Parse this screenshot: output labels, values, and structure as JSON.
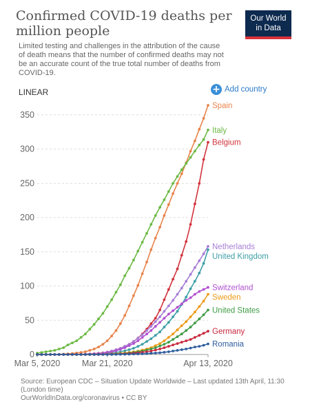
{
  "header": {
    "title": "Confirmed COVID-19 deaths per million people",
    "subtitle": "Limited testing and challenges in the attribution of the cause of death means that the number of confirmed deaths may not be an accurate count of the true total number of deaths from COVID-19.",
    "logo_line1": "Our World",
    "logo_line2": "in Data"
  },
  "controls": {
    "scale_label": "LINEAR",
    "add_country_label": "Add country"
  },
  "footer": {
    "source": "Source: European CDC – Situation Update Worldwide – Last updated 13th April, 11:30 (London time)",
    "credit": "OurWorldInData.org/coronavirus • CC BY"
  },
  "colors": {
    "grid": "#dddddd",
    "axis_text": "#666666"
  },
  "chart_data": {
    "type": "line",
    "title": "Confirmed COVID-19 deaths per million people",
    "y_scale": "linear",
    "yticks": [
      0,
      50,
      100,
      150,
      200,
      250,
      300,
      350
    ],
    "ylim": [
      0,
      365
    ],
    "xticks": [
      "Mar 5, 2020",
      "Mar 21, 2020",
      "Apr 13, 2020"
    ],
    "x_start": "2020-03-05",
    "x_end": "2020-04-13",
    "grid": true,
    "series": [
      {
        "name": "Spain",
        "color": "#e8834a",
        "values": [
          0,
          0,
          0,
          0,
          0.1,
          0.3,
          0.6,
          1,
          1.5,
          2.2,
          3,
          4,
          6,
          8,
          11,
          15,
          20,
          27,
          35,
          45,
          57,
          71,
          86,
          101,
          118,
          135,
          153,
          170,
          186,
          203,
          219,
          235,
          250,
          264,
          280,
          297,
          312,
          329,
          345,
          364
        ]
      },
      {
        "name": "Italy",
        "color": "#6cb944",
        "values": [
          2,
          3,
          4,
          5,
          6,
          8,
          10,
          14,
          17,
          20,
          25,
          30,
          37,
          44,
          52,
          60,
          70,
          80,
          91,
          102,
          115,
          126,
          138,
          151,
          164,
          177,
          190,
          203,
          215,
          226,
          238,
          250,
          260,
          270,
          279,
          288,
          297,
          306,
          314,
          328
        ]
      },
      {
        "name": "Belgium",
        "color": "#d2333c",
        "values": [
          0,
          0,
          0,
          0,
          0,
          0,
          0,
          0,
          0.1,
          0.2,
          0.3,
          0.5,
          0.8,
          1.2,
          1.8,
          2.5,
          3.5,
          5,
          7,
          9,
          12,
          15,
          19,
          24,
          30,
          37,
          45,
          53,
          65,
          80,
          95,
          110,
          125,
          145,
          165,
          190,
          220,
          250,
          285,
          310
        ]
      },
      {
        "name": "Netherlands",
        "color": "#a77ed6",
        "values": [
          0,
          0,
          0,
          0,
          0,
          0,
          0,
          0,
          0,
          0.1,
          0.2,
          0.4,
          0.7,
          1,
          1.5,
          2.3,
          3.5,
          5,
          7,
          9,
          12,
          15,
          19,
          24,
          29,
          35,
          41,
          48,
          55,
          63,
          71,
          79,
          88,
          97,
          107,
          117,
          127,
          137,
          147,
          158
        ]
      },
      {
        "name": "United Kingdom",
        "color": "#3d9ea6",
        "values": [
          0,
          0,
          0,
          0,
          0,
          0,
          0,
          0,
          0,
          0,
          0.1,
          0.2,
          0.3,
          0.4,
          0.6,
          0.9,
          1.3,
          2,
          3,
          4,
          5.5,
          7,
          9,
          12,
          15,
          19,
          23,
          28,
          33,
          40,
          47,
          55,
          63,
          73,
          84,
          96,
          107,
          119,
          133,
          153
        ]
      },
      {
        "name": "Switzerland",
        "color": "#b051cf",
        "values": [
          0,
          0,
          0,
          0,
          0,
          0,
          0,
          0,
          0,
          0,
          0.1,
          0.2,
          0.4,
          0.7,
          1.1,
          1.8,
          2.7,
          3.8,
          5.5,
          7.5,
          10,
          13,
          16,
          20,
          25,
          30,
          35,
          41,
          47,
          53,
          59,
          64,
          69,
          74,
          79,
          83,
          88,
          92,
          95,
          98
        ]
      },
      {
        "name": "Sweden",
        "color": "#ed9a17",
        "values": [
          0,
          0,
          0,
          0,
          0,
          0,
          0,
          0,
          0,
          0,
          0,
          0,
          0,
          0.1,
          0.2,
          0.3,
          0.5,
          0.8,
          1.2,
          1.7,
          2.3,
          3,
          4,
          5,
          6.5,
          8,
          10,
          13,
          16,
          20,
          25,
          30,
          36,
          42,
          48,
          55,
          62,
          70,
          78,
          88
        ]
      },
      {
        "name": "United States",
        "color": "#3f9b46",
        "values": [
          0,
          0,
          0,
          0,
          0,
          0,
          0,
          0,
          0,
          0,
          0,
          0,
          0,
          0,
          0.1,
          0.2,
          0.3,
          0.5,
          0.8,
          1.1,
          1.6,
          2.2,
          3,
          4,
          5,
          6.5,
          8,
          10,
          12.5,
          15,
          18,
          22,
          26,
          30,
          35,
          40,
          46,
          52,
          58,
          65
        ]
      },
      {
        "name": "Germany",
        "color": "#c8283c",
        "values": [
          0,
          0,
          0,
          0,
          0,
          0,
          0,
          0,
          0,
          0,
          0,
          0,
          0,
          0,
          0,
          0.1,
          0.2,
          0.3,
          0.5,
          0.7,
          1,
          1.4,
          1.9,
          2.5,
          3.2,
          4,
          5,
          6.5,
          8,
          10,
          12,
          14,
          16,
          18,
          20,
          22,
          25,
          28,
          31,
          34
        ]
      },
      {
        "name": "Romania",
        "color": "#2f5e9e",
        "values": [
          0,
          0,
          0,
          0,
          0,
          0,
          0,
          0,
          0,
          0,
          0,
          0,
          0,
          0,
          0,
          0,
          0,
          0,
          0.1,
          0.2,
          0.3,
          0.4,
          0.6,
          0.8,
          1,
          1.3,
          1.7,
          2.1,
          2.6,
          3.2,
          4,
          5,
          6,
          7,
          8,
          9.5,
          11,
          12,
          13.5,
          15.5
        ]
      }
    ]
  }
}
